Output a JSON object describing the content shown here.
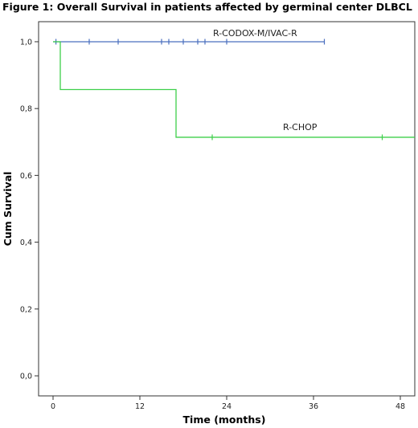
{
  "figure": {
    "title": "Figure 1: Overall Survival in patients affected by germinal center DLBCL"
  },
  "chart_data": {
    "type": "line",
    "step": true,
    "xlabel": "Time (months)",
    "ylabel": "Cum Survival",
    "xlim": [
      -2,
      50
    ],
    "ylim": [
      -0.06,
      1.06
    ],
    "xticks": [
      0,
      12,
      24,
      36,
      48
    ],
    "xtick_labels": [
      "0",
      "12",
      "24",
      "36",
      "48"
    ],
    "yticks": [
      0.0,
      0.2,
      0.4,
      0.6,
      0.8,
      1.0
    ],
    "ytick_labels": [
      "0,0",
      "0,2",
      "0,4",
      "0,6",
      "0,8",
      "1,0"
    ],
    "grid": false,
    "legend": "none (series labelled inline)",
    "series": [
      {
        "name": "R-CODOX-M/IVAC-R",
        "color": "#4a6fbf",
        "steps": [
          [
            0,
            1.0
          ],
          [
            37.5,
            1.0
          ]
        ],
        "censored_x": [
          0.4,
          5,
          9,
          15,
          16,
          18,
          20,
          21,
          24,
          37.5
        ]
      },
      {
        "name": "R-CHOP",
        "color": "#3ecf4a",
        "steps": [
          [
            0,
            1.0
          ],
          [
            1,
            0.857
          ],
          [
            17,
            0.714
          ],
          [
            50,
            0.714
          ]
        ],
        "censored_x": [
          22,
          45.5
        ]
      }
    ]
  }
}
